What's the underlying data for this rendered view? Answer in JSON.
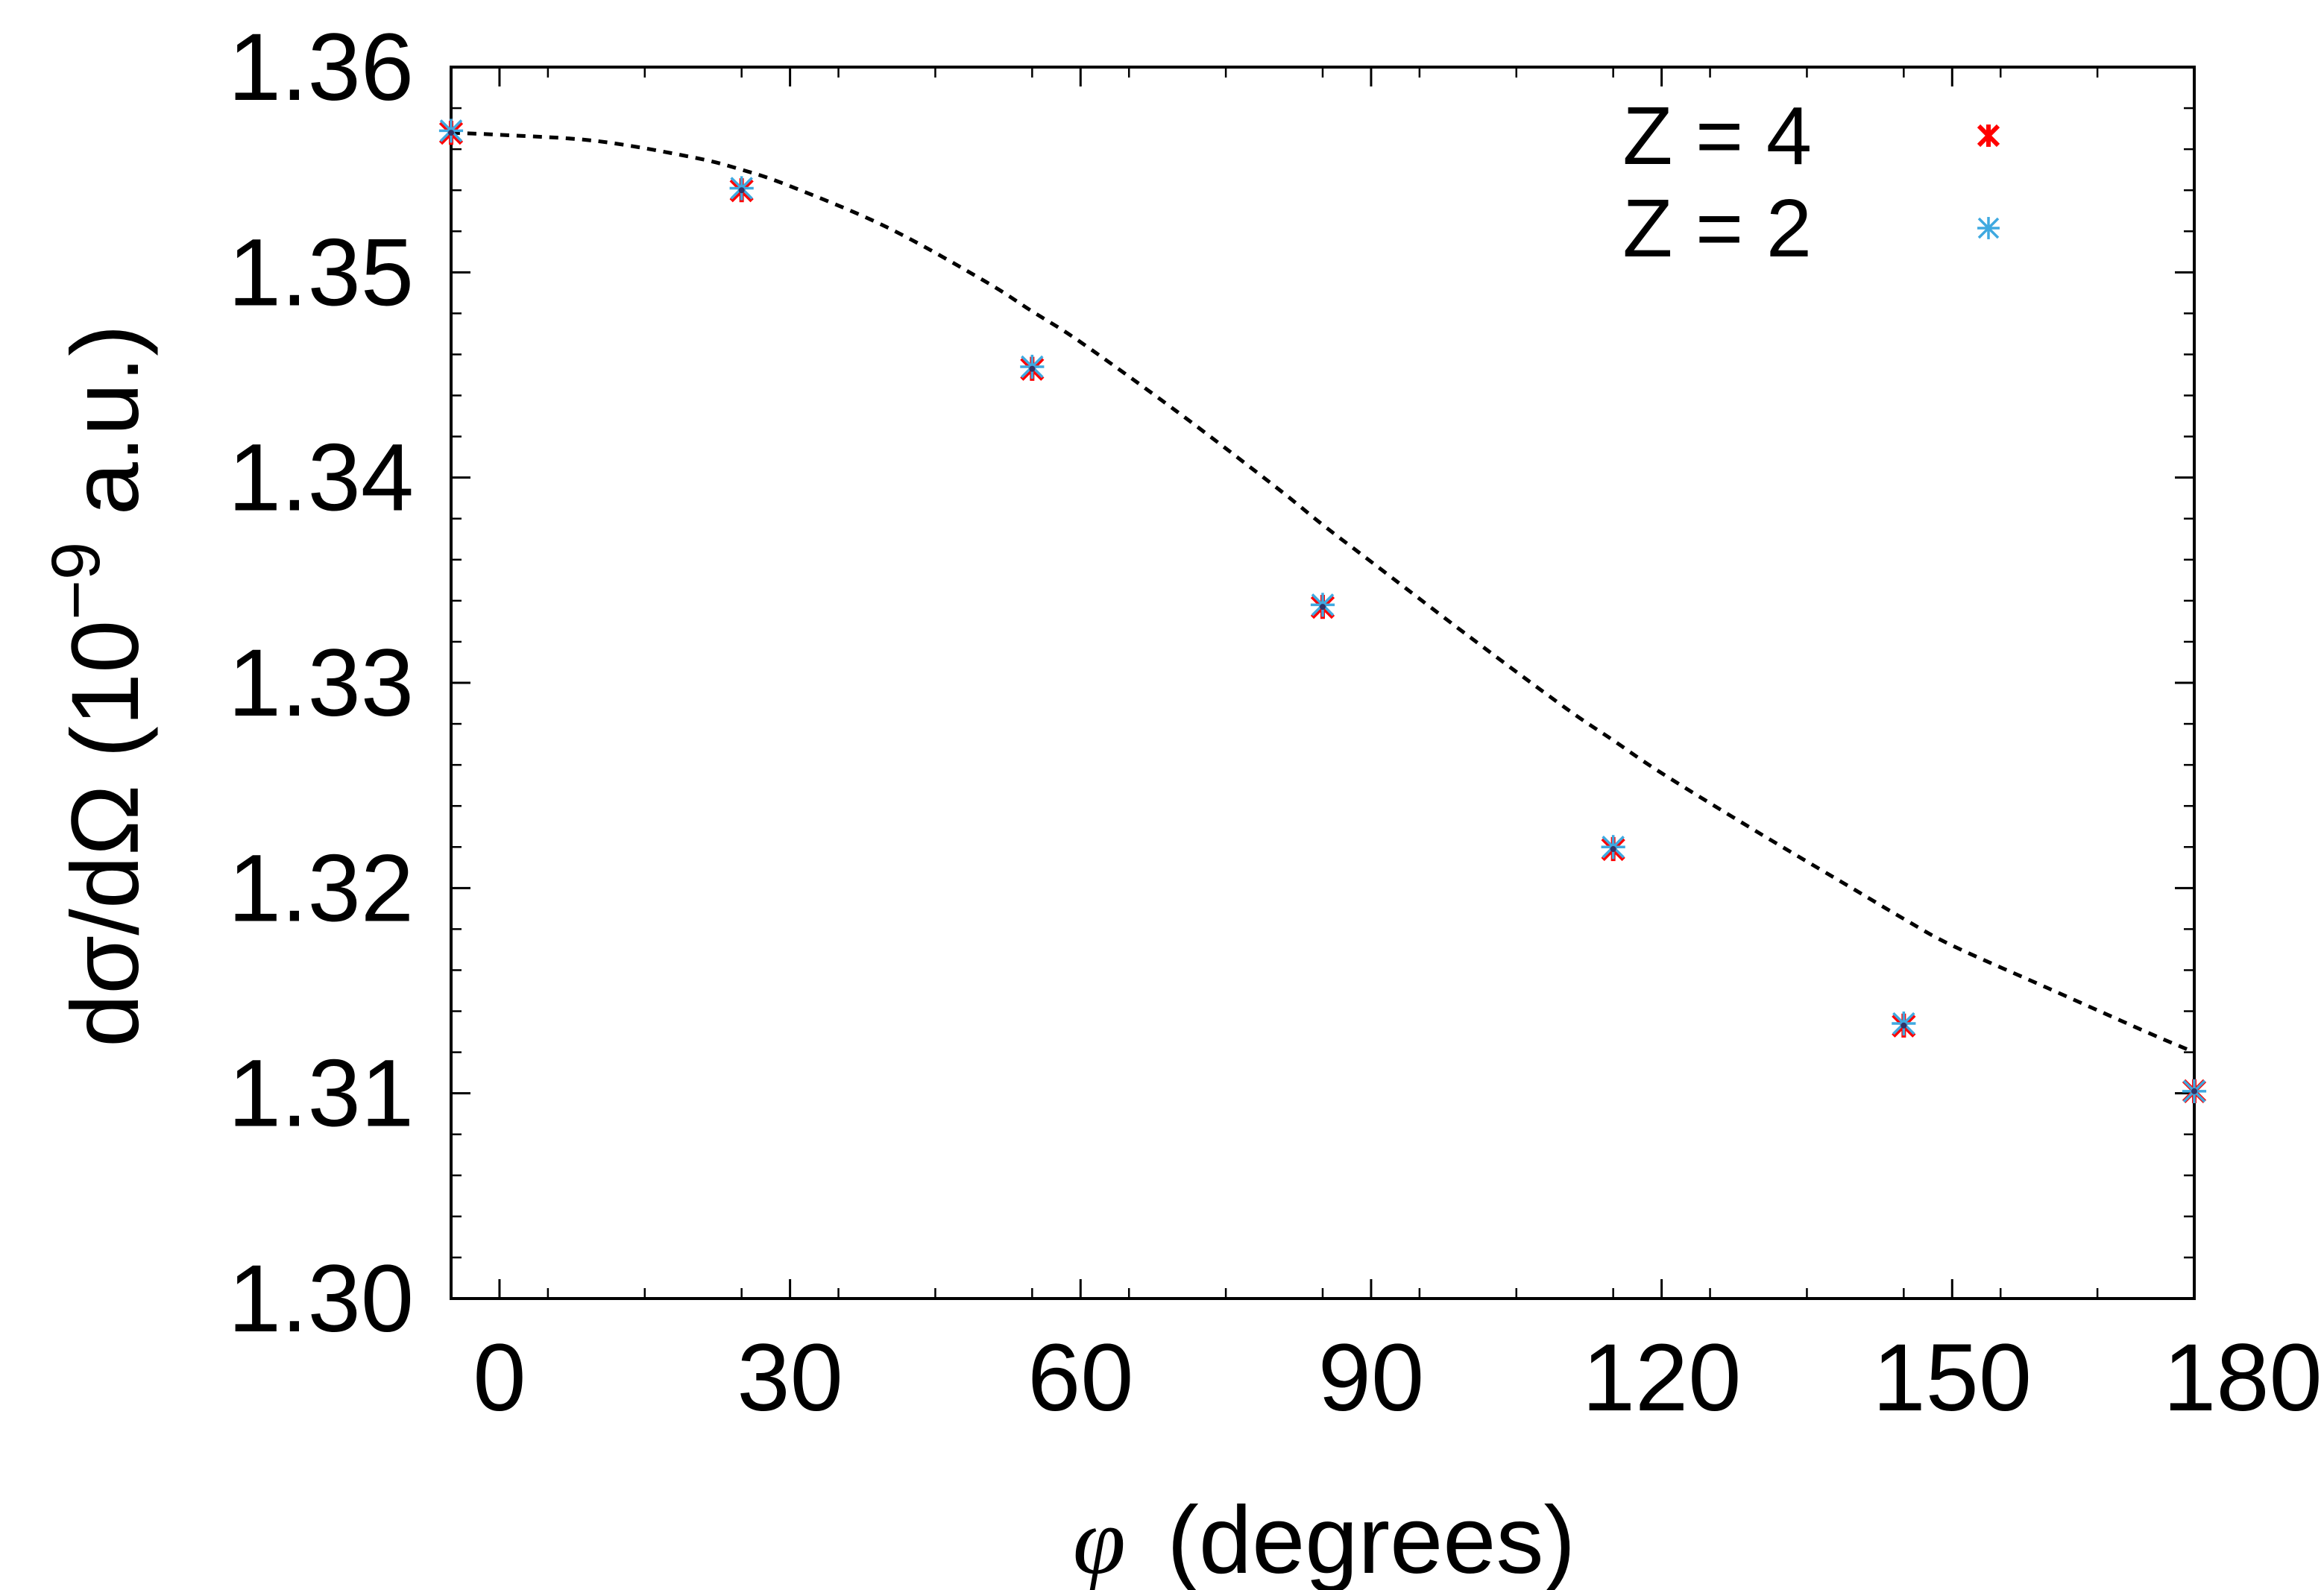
{
  "chart_data": {
    "type": "scatter",
    "title": "",
    "xlabel_symbol": "φ",
    "xlabel_text": "(degrees)",
    "ylabel_main": "dσ/dΩ (10",
    "ylabel_exp": "−9",
    "ylabel_tail": " a.u.)",
    "xlim": [
      -5,
      175
    ],
    "ylim": [
      1.3,
      1.36
    ],
    "x_ticks": [
      0,
      30,
      60,
      90,
      120,
      150,
      180
    ],
    "x_tick_labels": [
      "0",
      "30",
      "60",
      "90",
      "120",
      "150",
      "180"
    ],
    "y_ticks": [
      1.3,
      1.31,
      1.32,
      1.33,
      1.34,
      1.35,
      1.36
    ],
    "y_tick_labels": [
      "1.30",
      "1.31",
      "1.32",
      "1.33",
      "1.34",
      "1.35",
      "1.36"
    ],
    "legend_position": "top-right",
    "grid": false,
    "fit_curve": {
      "style": "dashed",
      "color": "#000000",
      "x": [
        -5,
        0,
        10,
        20,
        25,
        30,
        40,
        50,
        55,
        60,
        70,
        80,
        85,
        90,
        100,
        110,
        115,
        120,
        130,
        140,
        145,
        150,
        160,
        170,
        175
      ],
      "y": [
        1.3568,
        1.3567,
        1.3564,
        1.3556,
        1.355,
        1.3542,
        1.3522,
        1.3496,
        1.3481,
        1.3466,
        1.3432,
        1.3396,
        1.3377,
        1.3359,
        1.3323,
        1.3288,
        1.3272,
        1.3256,
        1.3227,
        1.3199,
        1.3185,
        1.3172,
        1.3151,
        1.313,
        1.312
      ]
    },
    "series": [
      {
        "name": "Z = 4",
        "color": "#ff0000",
        "marker": "x-star",
        "x": [
          -5,
          25,
          55,
          85,
          115,
          145,
          175
        ],
        "y": [
          1.3568,
          1.354,
          1.3453,
          1.3337,
          1.3219,
          1.3133,
          1.3101
        ]
      },
      {
        "name": "Z = 2",
        "color": "#3fa9e0",
        "marker": "asterisk",
        "x": [
          -5,
          25,
          55,
          85,
          115,
          145,
          175
        ],
        "y": [
          1.3569,
          1.3541,
          1.3454,
          1.3338,
          1.322,
          1.3134,
          1.3101
        ]
      }
    ]
  }
}
